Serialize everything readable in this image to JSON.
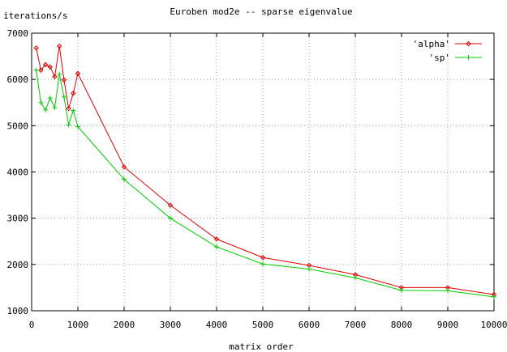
{
  "chart_data": {
    "type": "line",
    "title": "Euroben mod2e -- sparse eigenvalue",
    "xlabel": "matrix order",
    "ylabel": "iterations/s",
    "xlim": [
      0,
      10000
    ],
    "ylim": [
      1000,
      7000
    ],
    "xticks": [
      "0",
      "1000",
      "2000",
      "3000",
      "4000",
      "5000",
      "6000",
      "7000",
      "8000",
      "9000",
      "10000"
    ],
    "yticks": [
      "1000",
      "2000",
      "3000",
      "4000",
      "5000",
      "6000",
      "7000"
    ],
    "grid": true,
    "legend": "top-right",
    "series": [
      {
        "name": "'alpha'",
        "color": "#e00000",
        "marker": "diamond",
        "x": [
          100,
          200,
          300,
          400,
          500,
          600,
          700,
          800,
          900,
          1000,
          2000,
          3000,
          4000,
          5000,
          6000,
          7000,
          8000,
          9000,
          10000
        ],
        "y": [
          6680,
          6200,
          6320,
          6270,
          6060,
          6720,
          5990,
          5370,
          5700,
          6130,
          4110,
          3280,
          2550,
          2150,
          1980,
          1780,
          1500,
          1500,
          1350
        ]
      },
      {
        "name": "'sp'",
        "color": "#00cc00",
        "marker": "plus",
        "x": [
          100,
          200,
          300,
          400,
          500,
          600,
          700,
          800,
          900,
          1000,
          2000,
          3000,
          4000,
          5000,
          6000,
          7000,
          8000,
          9000,
          10000
        ],
        "y": [
          6200,
          5500,
          5340,
          5600,
          5390,
          6110,
          5620,
          5020,
          5330,
          4980,
          3840,
          3000,
          2380,
          2010,
          1900,
          1710,
          1440,
          1430,
          1300
        ]
      }
    ]
  }
}
